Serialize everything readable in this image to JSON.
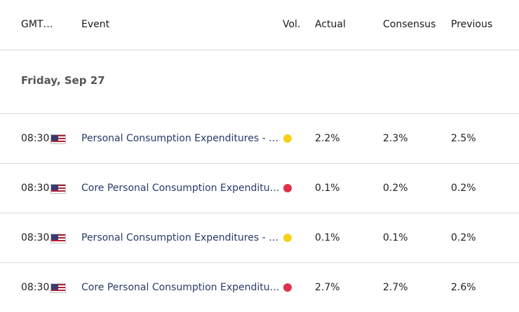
{
  "header": {
    "gmt": "GMT…",
    "event": "Event",
    "vol": "Vol.",
    "actual": "Actual",
    "consensus": "Consensus",
    "previous": "Previous"
  },
  "date_label": "Friday, Sep 27",
  "rows": [
    {
      "time": "08:30",
      "country_flag": "us-flag-icon",
      "event": "Personal Consumption Expenditures - Price Index (YoY)",
      "event_display": "Personal Consumption Expenditures - P…",
      "volatility": "medium",
      "vol_color": "#f5d21a",
      "actual": "2.2%",
      "consensus": "2.3%",
      "previous": "2.5%"
    },
    {
      "time": "08:30",
      "country_flag": "us-flag-icon",
      "event": "Core Personal Consumption Expenditures",
      "event_display": "Core Personal Consumption Expenditur…",
      "volatility": "high",
      "vol_color": "#e0304a",
      "actual": "0.1%",
      "consensus": "0.2%",
      "previous": "0.2%"
    },
    {
      "time": "08:30",
      "country_flag": "us-flag-icon",
      "event": "Personal Consumption Expenditures - Price Index (MoM)",
      "event_display": "Personal Consumption Expenditures - P…",
      "volatility": "medium",
      "vol_color": "#f5d21a",
      "actual": "0.1%",
      "consensus": "0.1%",
      "previous": "0.2%"
    },
    {
      "time": "08:30",
      "country_flag": "us-flag-icon",
      "event": "Core Personal Consumption Expenditures",
      "event_display": "Core Personal Consumption Expenditur…",
      "volatility": "high",
      "vol_color": "#e0304a",
      "actual": "2.7%",
      "consensus": "2.7%",
      "previous": "2.6%"
    }
  ]
}
